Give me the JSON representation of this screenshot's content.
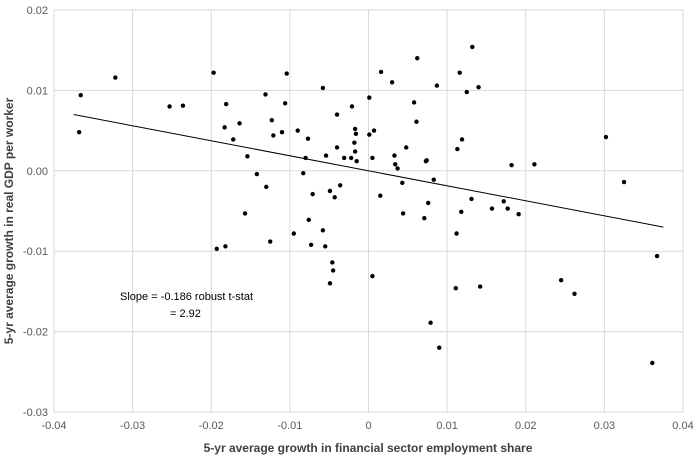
{
  "chart_data": {
    "type": "scatter",
    "title": "",
    "xlabel": "5-yr average growth in financial sector employment share",
    "ylabel": "5-yr average growth in real GDP per worker",
    "xlim": [
      -0.04,
      0.04
    ],
    "ylim": [
      -0.03,
      0.02
    ],
    "x_ticks": [
      "-0.04",
      "-0.03",
      "-0.02",
      "-0.01",
      "0",
      "0.01",
      "0.02",
      "0.03",
      "0.04"
    ],
    "y_ticks": [
      "0.02",
      "0.01",
      "0.00",
      "-0.01",
      "-0.02",
      "-0.03"
    ],
    "grid": "vertical and horizontal major gridlines",
    "legend": "none",
    "annotation": [
      "Slope = -0.186 robust t-stat",
      "= 2.92"
    ],
    "trendline": {
      "x": [
        -0.0375,
        0.0375
      ],
      "y": [
        0.007,
        -0.007
      ]
    },
    "points": [
      [
        -0.0366,
        0.0094
      ],
      [
        -0.0368,
        0.0048
      ],
      [
        -0.0322,
        0.0116
      ],
      [
        -0.0253,
        0.008
      ],
      [
        -0.0236,
        0.0081
      ],
      [
        -0.0197,
        0.0122
      ],
      [
        -0.0193,
        -0.0097
      ],
      [
        -0.0183,
        0.0054
      ],
      [
        -0.0181,
        0.0083
      ],
      [
        -0.0182,
        -0.0094
      ],
      [
        -0.0172,
        0.0039
      ],
      [
        -0.0164,
        0.0059
      ],
      [
        -0.0157,
        -0.0053
      ],
      [
        -0.0154,
        0.0018
      ],
      [
        -0.0142,
        -0.0004
      ],
      [
        -0.0131,
        0.0095
      ],
      [
        -0.013,
        -0.002
      ],
      [
        -0.0125,
        -0.0088
      ],
      [
        -0.0123,
        0.0063
      ],
      [
        -0.0121,
        0.0044
      ],
      [
        -0.011,
        0.0048
      ],
      [
        -0.0106,
        0.0084
      ],
      [
        -0.0104,
        0.0121
      ],
      [
        -0.0095,
        -0.0078
      ],
      [
        -0.009,
        0.005
      ],
      [
        -0.0083,
        -0.0003
      ],
      [
        -0.008,
        0.0016
      ],
      [
        -0.0077,
        0.004
      ],
      [
        -0.0076,
        -0.0061
      ],
      [
        -0.0073,
        -0.0092
      ],
      [
        -0.0071,
        -0.0029
      ],
      [
        -0.0058,
        0.0103
      ],
      [
        -0.0058,
        -0.0074
      ],
      [
        -0.0054,
        0.0019
      ],
      [
        -0.0055,
        -0.0094
      ],
      [
        -0.0049,
        -0.0025
      ],
      [
        -0.0049,
        -0.014
      ],
      [
        -0.0046,
        -0.0114
      ],
      [
        -0.0045,
        -0.0124
      ],
      [
        -0.0043,
        -0.0033
      ],
      [
        -0.004,
        0.007
      ],
      [
        -0.004,
        0.0029
      ],
      [
        -0.0036,
        -0.0018
      ],
      [
        -0.0031,
        0.0016
      ],
      [
        -0.0022,
        0.0016
      ],
      [
        -0.0021,
        0.008
      ],
      [
        -0.0017,
        0.0052
      ],
      [
        -0.0016,
        0.0046
      ],
      [
        -0.0017,
        0.0024
      ],
      [
        -0.0015,
        0.0012
      ],
      [
        -0.0018,
        0.0035
      ],
      [
        0.0001,
        0.0091
      ],
      [
        0.0005,
        0.0016
      ],
      [
        0.0005,
        -0.0131
      ],
      [
        0.0007,
        0.005
      ],
      [
        0.0001,
        0.0045
      ],
      [
        0.0015,
        -0.0031
      ],
      [
        0.0016,
        0.0123
      ],
      [
        0.003,
        0.011
      ],
      [
        0.0033,
        0.0019
      ],
      [
        0.0034,
        0.0008
      ],
      [
        0.0037,
        0.0003
      ],
      [
        0.0043,
        -0.0015
      ],
      [
        0.0044,
        -0.0053
      ],
      [
        0.0048,
        0.0029
      ],
      [
        0.0058,
        0.0085
      ],
      [
        0.0061,
        0.0061
      ],
      [
        0.0062,
        0.014
      ],
      [
        0.0071,
        -0.0059
      ],
      [
        0.0073,
        0.0012
      ],
      [
        0.0074,
        0.0013
      ],
      [
        0.0076,
        -0.004
      ],
      [
        0.0079,
        -0.0189
      ],
      [
        0.0083,
        -0.0011
      ],
      [
        0.0087,
        0.0106
      ],
      [
        0.009,
        -0.022
      ],
      [
        0.0111,
        -0.0146
      ],
      [
        0.0112,
        -0.0078
      ],
      [
        0.0113,
        0.0027
      ],
      [
        0.0116,
        0.0122
      ],
      [
        0.0118,
        -0.0051
      ],
      [
        0.0119,
        0.0039
      ],
      [
        0.0125,
        0.0098
      ],
      [
        0.0131,
        -0.0035
      ],
      [
        0.0132,
        0.0154
      ],
      [
        0.014,
        0.0104
      ],
      [
        0.0142,
        -0.0144
      ],
      [
        0.0157,
        -0.0047
      ],
      [
        0.0172,
        -0.0038
      ],
      [
        0.0177,
        -0.0047
      ],
      [
        0.0182,
        0.0007
      ],
      [
        0.0191,
        -0.0054
      ],
      [
        0.0211,
        0.0008
      ],
      [
        0.0245,
        -0.0136
      ],
      [
        0.0262,
        -0.0153
      ],
      [
        0.0302,
        0.0042
      ],
      [
        0.0325,
        -0.0014
      ],
      [
        0.0361,
        -0.0239
      ],
      [
        0.0367,
        -0.0106
      ]
    ]
  }
}
